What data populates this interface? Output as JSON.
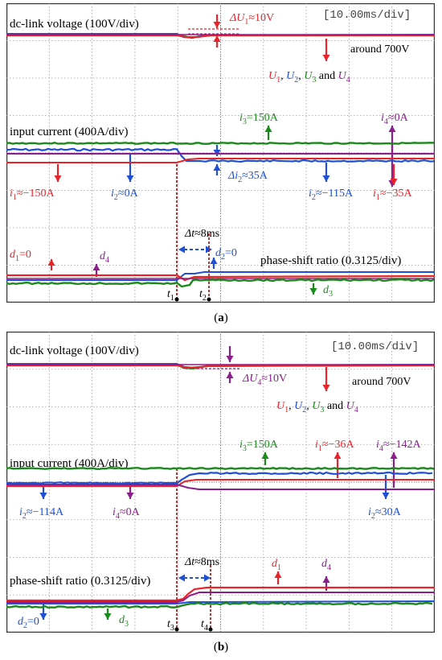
{
  "figure": {
    "captions": [
      "a",
      "b"
    ]
  },
  "chart_data": [
    {
      "type": "line",
      "panel": "a",
      "timebase": "[10.00ms/div]",
      "grid": true,
      "divisions": {
        "x": 10,
        "y": 8
      },
      "sections": {
        "dc": {
          "label": "dc-link voltage (100V/div)",
          "note": "around 700V",
          "delta_u": "ΔU1≈10V"
        },
        "cur": {
          "label": "input current (400A/div)"
        },
        "phase": {
          "label": "phase-shift ratio (0.3125/div)"
        }
      },
      "legend_voltage": {
        "parts": [
          {
            "sym": "U",
            "sub": "1",
            "color": "#e8242a",
            "sep": ", "
          },
          {
            "sym": "U",
            "sub": "2",
            "color": "#1f4fd6",
            "sep": ", "
          },
          {
            "sym": "U",
            "sub": "3",
            "color": "#1a8a1a",
            "sep": " and "
          },
          {
            "sym": "U",
            "sub": "4",
            "color": "#8a1e8a",
            "sep": ""
          }
        ]
      },
      "annotations": [
        {
          "text": "i3=150A",
          "color": "#1a8a1a"
        },
        {
          "text": "i4≈0A",
          "color": "#8a1e8a"
        },
        {
          "text": "i1≈−150A",
          "color": "#e8242a"
        },
        {
          "text": "i2≈0A",
          "color": "#1f4fd6"
        },
        {
          "text": "Δi2≈35A",
          "color": "#1f4fd6"
        },
        {
          "text": "i2≈−115A",
          "color": "#1f4fd6"
        },
        {
          "text": "i1≈−35A",
          "color": "#e8242a"
        },
        {
          "text": "Δt≈8ms",
          "color": "#000000"
        },
        {
          "text": "d1=0",
          "color": "#e8242a"
        },
        {
          "text": "d4",
          "color": "#8a1e8a"
        },
        {
          "text": "d2=0",
          "color": "#1f4fd6"
        },
        {
          "text": "d3",
          "color": "#1a8a1a"
        }
      ],
      "time_markers": [
        "t1",
        "t2"
      ],
      "series": [
        {
          "name": "U1",
          "color": "#e8242a",
          "section": "voltage"
        },
        {
          "name": "U2",
          "color": "#1f4fd6",
          "section": "voltage"
        },
        {
          "name": "U3",
          "color": "#1a8a1a",
          "section": "voltage"
        },
        {
          "name": "U4",
          "color": "#8a1e8a",
          "section": "voltage"
        },
        {
          "name": "i1",
          "color": "#e8242a",
          "section": "current"
        },
        {
          "name": "i2",
          "color": "#1f4fd6",
          "section": "current"
        },
        {
          "name": "i3",
          "color": "#1a8a1a",
          "section": "current"
        },
        {
          "name": "i4",
          "color": "#8a1e8a",
          "section": "current"
        },
        {
          "name": "d1",
          "color": "#e8242a",
          "section": "phase"
        },
        {
          "name": "d2",
          "color": "#1f4fd6",
          "section": "phase"
        },
        {
          "name": "d3",
          "color": "#1a8a1a",
          "section": "phase"
        },
        {
          "name": "d4",
          "color": "#8a1e8a",
          "section": "phase"
        }
      ]
    },
    {
      "type": "line",
      "panel": "b",
      "timebase": "[10.00ms/div]",
      "grid": true,
      "divisions": {
        "x": 10,
        "y": 8
      },
      "sections": {
        "dc": {
          "label": "dc-link voltage (100V/div)",
          "note": "around 700V",
          "delta_u": "ΔU4≈10V"
        },
        "cur": {
          "label": "input current (400A/div)"
        },
        "phase": {
          "label": "phase-shift ratio (0.3125/div)"
        }
      },
      "legend_voltage": {
        "parts": [
          {
            "sym": "U",
            "sub": "1",
            "color": "#e8242a",
            "sep": ", "
          },
          {
            "sym": "U",
            "sub": "2",
            "color": "#1f4fd6",
            "sep": ", "
          },
          {
            "sym": "U",
            "sub": "3",
            "color": "#1a8a1a",
            "sep": " and "
          },
          {
            "sym": "U",
            "sub": "4",
            "color": "#8a1e8a",
            "sep": ""
          }
        ]
      },
      "annotations": [
        {
          "text": "i3=150A",
          "color": "#1a8a1a"
        },
        {
          "text": "i1≈−36A",
          "color": "#e8242a"
        },
        {
          "text": "i4≈−142A",
          "color": "#8a1e8a"
        },
        {
          "text": "i2≈−114A",
          "color": "#1f4fd6"
        },
        {
          "text": "i4≈0A",
          "color": "#8a1e8a"
        },
        {
          "text": "i2≈30A",
          "color": "#1f4fd6"
        },
        {
          "text": "Δt≈8ms",
          "color": "#000000"
        },
        {
          "text": "d1",
          "color": "#e8242a"
        },
        {
          "text": "d4",
          "color": "#8a1e8a"
        },
        {
          "text": "d2=0",
          "color": "#1f4fd6"
        },
        {
          "text": "d3",
          "color": "#1a8a1a"
        }
      ],
      "time_markers": [
        "t3",
        "t4"
      ],
      "series": [
        {
          "name": "U1",
          "color": "#e8242a",
          "section": "voltage"
        },
        {
          "name": "U2",
          "color": "#1f4fd6",
          "section": "voltage"
        },
        {
          "name": "U3",
          "color": "#1a8a1a",
          "section": "voltage"
        },
        {
          "name": "U4",
          "color": "#8a1e8a",
          "section": "voltage"
        },
        {
          "name": "i1",
          "color": "#e8242a",
          "section": "current"
        },
        {
          "name": "i2",
          "color": "#1f4fd6",
          "section": "current"
        },
        {
          "name": "i3",
          "color": "#1a8a1a",
          "section": "current"
        },
        {
          "name": "i4",
          "color": "#8a1e8a",
          "section": "current"
        },
        {
          "name": "d1",
          "color": "#e8242a",
          "section": "phase"
        },
        {
          "name": "d2",
          "color": "#1f4fd6",
          "section": "phase"
        },
        {
          "name": "d3",
          "color": "#1a8a1a",
          "section": "phase"
        },
        {
          "name": "d4",
          "color": "#8a1e8a",
          "section": "phase"
        }
      ]
    }
  ]
}
